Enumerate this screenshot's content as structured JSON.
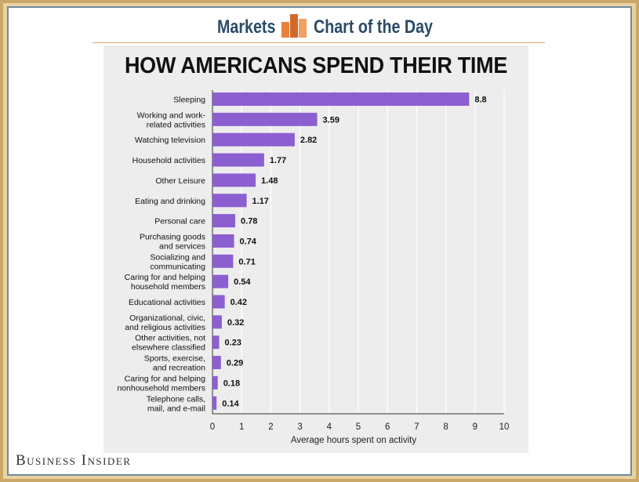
{
  "header": {
    "left_label": "Markets",
    "right_label": "Chart of the Day"
  },
  "brand": "Business Insider",
  "colors": {
    "bar": "#8c5fd1",
    "header_text": "#2b4a67",
    "logo_orange": "#e8823a",
    "panel_bg": "#ededed"
  },
  "chart_data": {
    "type": "bar",
    "orientation": "horizontal",
    "title": "HOW AMERICANS SPEND THEIR TIME",
    "xlabel": "Average hours spent on activity",
    "ylabel": "",
    "xlim": [
      0,
      10
    ],
    "xticks": [
      "0",
      "1",
      "2",
      "3",
      "4",
      "5",
      "6",
      "7",
      "8",
      "9",
      "10"
    ],
    "grid": "vertical",
    "categories": [
      [
        "Sleeping"
      ],
      [
        "Working and work-",
        "related activities"
      ],
      [
        "Watching television"
      ],
      [
        "Household activities"
      ],
      [
        "Other Leisure"
      ],
      [
        "Eating and drinking"
      ],
      [
        "Personal care"
      ],
      [
        "Purchasing goods",
        "and services"
      ],
      [
        "Socializing and",
        "communicating"
      ],
      [
        "Caring for and helping",
        "household members"
      ],
      [
        "Educational activities"
      ],
      [
        "Organizational, civic,",
        "and religious activities"
      ],
      [
        "Other activities, not",
        "elsewhere classified"
      ],
      [
        "Sports, exercise,",
        "and recreation"
      ],
      [
        "Caring for and helping",
        "nonhousehold members"
      ],
      [
        "Telephone calls,",
        "mail, and e-mail"
      ]
    ],
    "values": [
      8.8,
      3.59,
      2.82,
      1.77,
      1.48,
      1.17,
      0.78,
      0.74,
      0.71,
      0.54,
      0.42,
      0.32,
      0.23,
      0.29,
      0.18,
      0.14
    ],
    "value_labels": [
      "8.8",
      "3.59",
      "2.82",
      "1.77",
      "1.48",
      "1.17",
      "0.78",
      "0.74",
      "0.71",
      "0.54",
      "0.42",
      "0.32",
      "0.23",
      "0.29",
      "0.18",
      "0.14"
    ]
  }
}
